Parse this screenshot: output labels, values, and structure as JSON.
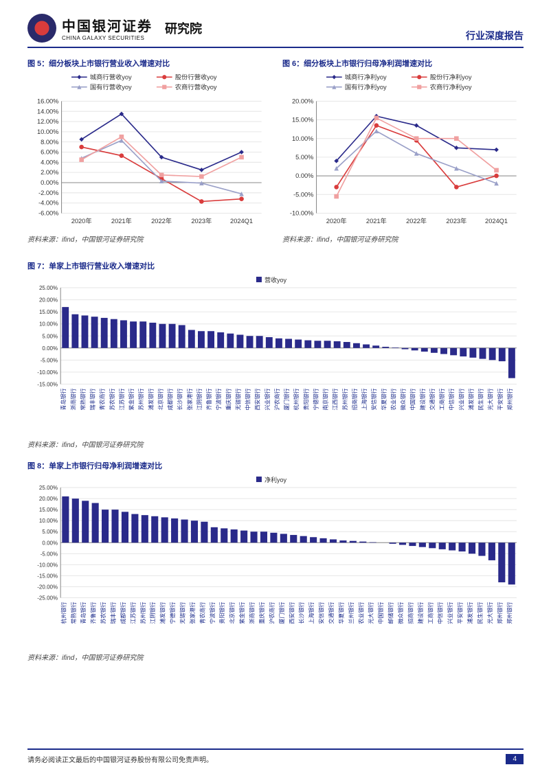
{
  "header": {
    "brand_cn": "中国银河证券",
    "brand_en": "CHINA GALAXY SECURITIES",
    "institute": "研究院",
    "report_type": "行业深度报告"
  },
  "footer": {
    "disclaimer": "请务必阅读正文最后的中国银河证券股份有限公司免责声明。",
    "page": "4"
  },
  "source_text": "资料来源：ifind，中国银河证券研究院",
  "fig5": {
    "title": "图 5：细分板块上市银行营业收入增速对比",
    "type": "line",
    "categories": [
      "2020年",
      "2021年",
      "2022年",
      "2023年",
      "2024Q1"
    ],
    "series": [
      {
        "name": "城商行营收yoy",
        "color": "#2a2a8a",
        "marker": "diamond",
        "values": [
          8.5,
          13.5,
          5.0,
          2.5,
          6.0
        ]
      },
      {
        "name": "股份行营收yoy",
        "color": "#d93c3c",
        "marker": "circle",
        "values": [
          7.0,
          5.3,
          0.8,
          -3.7,
          -3.2
        ]
      },
      {
        "name": "国有行营收yoy",
        "color": "#9aa0c8",
        "marker": "triangle",
        "values": [
          4.8,
          8.3,
          0.3,
          -0.1,
          -2.2
        ]
      },
      {
        "name": "农商行营收yoy",
        "color": "#f0a0a0",
        "marker": "square",
        "values": [
          4.5,
          9.0,
          1.5,
          1.2,
          5.0
        ]
      }
    ],
    "ylim": [
      -6,
      16
    ],
    "ytick_step": 2,
    "label_fontsize": 9,
    "legend_fontsize": 9,
    "grid_color": "#e6e6e6",
    "axis_color": "#888"
  },
  "fig6": {
    "title": "图 6：细分板块上市银行归母净利润增速对比",
    "type": "line",
    "categories": [
      "2020年",
      "2021年",
      "2022年",
      "2023年",
      "2024Q1"
    ],
    "series": [
      {
        "name": "城商行净利yoy",
        "color": "#2a2a8a",
        "marker": "diamond",
        "values": [
          4.0,
          16.0,
          13.5,
          7.5,
          7.0
        ]
      },
      {
        "name": "股份行净利yoy",
        "color": "#d93c3c",
        "marker": "circle",
        "values": [
          -3.0,
          13.5,
          9.5,
          -3.0,
          0.0
        ]
      },
      {
        "name": "国有行净利yoy",
        "color": "#9aa0c8",
        "marker": "triangle",
        "values": [
          2.0,
          12.0,
          6.0,
          2.0,
          -2.0
        ]
      },
      {
        "name": "农商行净利yoy",
        "color": "#f0a0a0",
        "marker": "square",
        "values": [
          -5.5,
          15.5,
          10.0,
          10.0,
          1.5
        ]
      }
    ],
    "ylim": [
      -10,
      20
    ],
    "ytick_step": 5,
    "label_fontsize": 9,
    "legend_fontsize": 9,
    "grid_color": "#e6e6e6",
    "axis_color": "#888"
  },
  "fig7": {
    "title": "图 7：单家上市银行营业收入增速对比",
    "type": "bar",
    "legend": "营收yoy",
    "bar_color": "#2a2a8a",
    "ylim": [
      -15,
      25
    ],
    "ytick_step": 5,
    "label_fontsize": 8,
    "grid_color": "#e6e6e6",
    "axis_color": "#888",
    "categories": [
      "青岛银行",
      "浙商银行",
      "常熟银行",
      "瑞丰银行",
      "青农商行",
      "苏农银行",
      "江苏银行",
      "紫金银行",
      "苏州银行",
      "浦发银行",
      "北京银行",
      "成都银行",
      "长沙银行",
      "张家港行",
      "江阴银行",
      "齐鲁银行",
      "宁波银行",
      "重庆银行",
      "无锡银行",
      "中信银行",
      "西安银行",
      "兴业银行",
      "沪农商行",
      "厦门银行",
      "杭州银行",
      "贵阳银行",
      "宁德银行",
      "南京银行",
      "江西银行",
      "苏州银行",
      "招商银行",
      "上海银行",
      "安信银行",
      "华夏银行",
      "农业银行",
      "微众银行",
      "中国银行",
      "建设银行",
      "交通银行",
      "工商银行",
      "中信银行",
      "兴业银行",
      "浦发银行",
      "民生银行",
      "光大银行",
      "平安银行",
      "郑州银行"
    ],
    "values": [
      17,
      14,
      13.5,
      13,
      12.5,
      12,
      11.5,
      11,
      11,
      10.5,
      10,
      10,
      9.5,
      7.5,
      7,
      7,
      6.5,
      6,
      5.5,
      5,
      5,
      4.5,
      4,
      3.8,
      3.5,
      3.2,
      3,
      3,
      2.8,
      2.5,
      2,
      1.5,
      1,
      0.5,
      0.2,
      -0.5,
      -1,
      -1.5,
      -2,
      -2.5,
      -3,
      -3.5,
      -4,
      -4.5,
      -5,
      -5.5,
      -12.5
    ]
  },
  "fig8": {
    "title": "图 8：单家上市银行归母净利润增速对比",
    "type": "bar",
    "legend": "净利yoy",
    "bar_color": "#2a2a8a",
    "ylim": [
      -25,
      25
    ],
    "ytick_step": 5,
    "label_fontsize": 8,
    "grid_color": "#e6e6e6",
    "axis_color": "#888",
    "categories": [
      "杭州银行",
      "常熟银行",
      "青岛银行",
      "齐鲁银行",
      "苏农银行",
      "瑞丰银行",
      "成都银行",
      "江苏银行",
      "苏州银行",
      "江阴银行",
      "浦发银行",
      "宁德银行",
      "无锡银行",
      "张家港行",
      "青农商行",
      "宁波银行",
      "贵阳银行",
      "北京银行",
      "紫金银行",
      "浙商银行",
      "重庆银行",
      "沪农商行",
      "厦门银行",
      "西安银行",
      "长沙银行",
      "上海银行",
      "安信银行",
      "交通银行",
      "华夏银行",
      "兰州银行",
      "农业银行",
      "光大银行",
      "中国银行",
      "邮储银行",
      "微众银行",
      "招商银行",
      "建设银行",
      "工商银行",
      "中信银行",
      "兴业银行",
      "平安银行",
      "浦发银行",
      "民生银行",
      "光大银行",
      "郑州银行",
      "郑州银行"
    ],
    "values": [
      21,
      20,
      19,
      18,
      15,
      15,
      14,
      13,
      12.5,
      12,
      11.5,
      11,
      10.5,
      10,
      9.5,
      7,
      6.5,
      6,
      5.5,
      5,
      5,
      4.5,
      4,
      3.5,
      3,
      2.5,
      2,
      1.5,
      1,
      0.8,
      0.5,
      0.2,
      0,
      -0.5,
      -1,
      -1.5,
      -2,
      -2.5,
      -3,
      -3.5,
      -4,
      -5,
      -6,
      -8,
      -18,
      -19
    ]
  }
}
